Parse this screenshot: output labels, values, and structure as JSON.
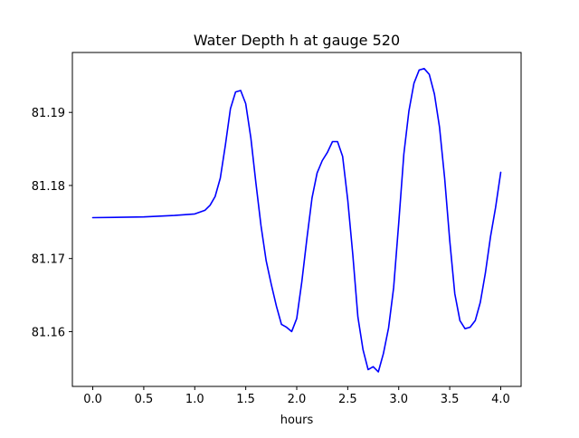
{
  "chart_data": {
    "type": "line",
    "title": "Water Depth h at gauge 520",
    "xlabel": "hours",
    "ylabel": "",
    "xlim": [
      -0.2,
      4.2
    ],
    "ylim": [
      81.1525,
      81.1982
    ],
    "xticks": [
      0.0,
      0.5,
      1.0,
      1.5,
      2.0,
      2.5,
      3.0,
      3.5,
      4.0
    ],
    "xtick_labels": [
      "0.0",
      "0.5",
      "1.0",
      "1.5",
      "2.0",
      "2.5",
      "3.0",
      "3.5",
      "4.0"
    ],
    "yticks": [
      81.16,
      81.17,
      81.18,
      81.19
    ],
    "ytick_labels": [
      "81.16",
      "81.17",
      "81.18",
      "81.19"
    ],
    "grid": false,
    "series": [
      {
        "color": "#0000ff",
        "x": [
          0.0,
          0.5,
          0.8,
          1.0,
          1.1,
          1.15,
          1.2,
          1.25,
          1.3,
          1.35,
          1.4,
          1.45,
          1.5,
          1.55,
          1.6,
          1.65,
          1.7,
          1.75,
          1.8,
          1.85,
          1.9,
          1.95,
          2.0,
          2.05,
          2.1,
          2.15,
          2.2,
          2.25,
          2.3,
          2.35,
          2.4,
          2.45,
          2.5,
          2.55,
          2.6,
          2.65,
          2.7,
          2.75,
          2.8,
          2.85,
          2.9,
          2.95,
          3.0,
          3.05,
          3.1,
          3.15,
          3.2,
          3.25,
          3.3,
          3.35,
          3.4,
          3.45,
          3.5,
          3.55,
          3.6,
          3.65,
          3.7,
          3.75,
          3.8,
          3.85,
          3.9,
          3.95,
          4.0
        ],
        "y": [
          81.1756,
          81.1757,
          81.1759,
          81.1761,
          81.1766,
          81.1773,
          81.1785,
          81.181,
          81.1855,
          81.1905,
          81.1928,
          81.193,
          81.1912,
          81.1865,
          81.1803,
          81.1745,
          81.1697,
          81.1665,
          81.1635,
          81.161,
          81.1606,
          81.16,
          81.1618,
          81.1668,
          81.1728,
          81.1783,
          81.1817,
          81.1834,
          81.1845,
          81.186,
          81.186,
          81.184,
          81.178,
          81.1705,
          81.162,
          81.1575,
          81.1548,
          81.1552,
          81.1545,
          81.157,
          81.1605,
          81.166,
          81.1748,
          81.1843,
          81.1902,
          81.194,
          81.1958,
          81.196,
          81.1952,
          81.1925,
          81.188,
          81.181,
          81.1725,
          81.1652,
          81.1615,
          81.1604,
          81.1606,
          81.1615,
          81.164,
          81.168,
          81.173,
          81.177,
          81.1818
        ]
      }
    ]
  }
}
